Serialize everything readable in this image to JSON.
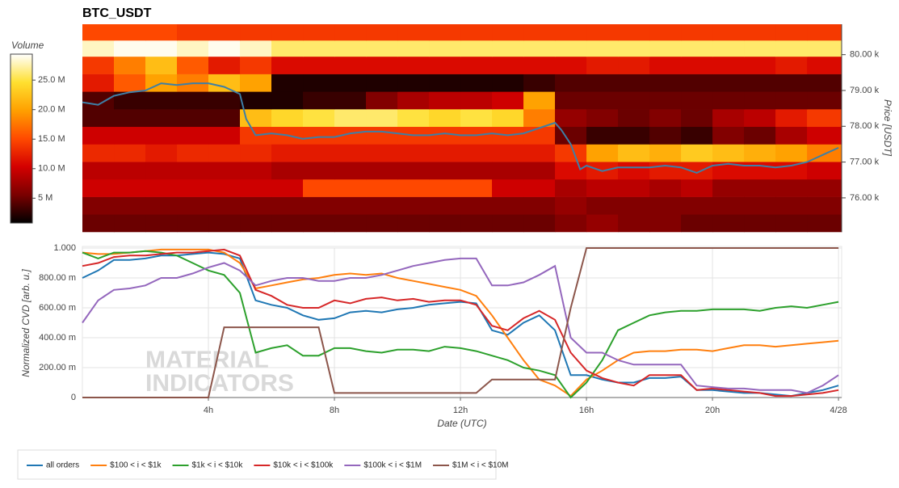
{
  "chart_data": [
    {
      "type": "heatmap",
      "title": "BTC_USDT",
      "colorbar_title": "Volume",
      "y_label": "Price [USDT]",
      "xlim": [
        0,
        24.1
      ],
      "ylim": [
        75050,
        80850
      ],
      "yticks": [
        {
          "value": 76000,
          "label": "76.00 k"
        },
        {
          "value": 77000,
          "label": "77.00 k"
        },
        {
          "value": 78000,
          "label": "78.00 k"
        },
        {
          "value": 79000,
          "label": "79.00 k"
        },
        {
          "value": 80000,
          "label": "80.00 k"
        }
      ],
      "x_bins": [
        0,
        1,
        2,
        3,
        4,
        5,
        6,
        7,
        8,
        9,
        10,
        11,
        12,
        13,
        14,
        15,
        16,
        17,
        18,
        19,
        20,
        21,
        22,
        23,
        24.1
      ],
      "y_bins": [
        75050,
        75540,
        76030,
        76520,
        77010,
        77500,
        77990,
        78480,
        78970,
        79460,
        79950,
        80400,
        80850
      ],
      "z": [
        [
          5,
          5,
          5,
          5,
          5,
          5,
          5,
          5,
          5,
          5,
          5,
          5,
          5,
          5,
          5,
          6,
          7,
          6,
          6,
          5,
          5,
          5,
          5,
          5
        ],
        [
          6,
          6,
          6,
          6,
          6,
          6,
          6,
          6,
          6,
          6,
          6,
          6,
          6,
          6,
          6,
          7,
          6,
          6,
          6,
          6,
          6,
          6,
          6,
          6
        ],
        [
          10,
          10,
          10,
          10,
          10,
          10,
          10,
          15,
          15,
          15,
          15,
          15,
          15,
          10,
          10,
          8,
          9,
          9,
          8,
          9,
          7,
          7,
          7,
          7
        ],
        [
          9,
          9,
          9,
          9,
          9,
          9,
          8,
          8,
          8,
          8,
          8,
          8,
          8,
          8,
          8,
          11,
          12,
          11,
          12,
          12,
          11,
          11,
          11,
          10
        ],
        [
          13,
          13,
          12,
          13,
          13,
          13,
          12,
          12,
          12,
          12,
          12,
          12,
          12,
          12,
          12,
          14,
          20,
          22,
          21,
          23,
          22,
          21,
          20,
          18
        ],
        [
          10,
          10,
          10,
          10,
          10,
          14,
          14,
          14,
          14,
          14,
          14,
          14,
          14,
          14,
          14,
          5,
          3,
          3,
          4,
          3,
          6,
          5,
          8,
          10
        ],
        [
          4,
          4,
          4,
          4,
          4,
          22,
          24,
          25,
          26,
          26,
          25,
          24,
          25,
          24,
          18,
          7,
          6,
          5,
          6,
          5,
          8,
          9,
          12,
          14
        ],
        [
          4,
          3,
          3,
          3,
          3,
          2,
          2,
          3,
          3,
          6,
          8,
          9,
          9,
          10,
          20,
          5,
          5,
          5,
          5,
          5,
          5,
          5,
          5,
          5
        ],
        [
          12,
          16,
          20,
          18,
          22,
          20,
          2,
          2,
          2,
          2,
          2,
          2,
          2,
          2,
          3,
          4,
          4,
          4,
          4,
          4,
          4,
          4,
          4,
          4
        ],
        [
          14,
          18,
          22,
          16,
          12,
          14,
          11,
          11,
          11,
          11,
          11,
          11,
          11,
          11,
          11,
          11,
          12,
          12,
          11,
          11,
          11,
          11,
          12,
          11
        ],
        [
          28,
          29,
          29,
          28,
          29,
          28,
          26,
          26,
          26,
          26,
          26,
          26,
          26,
          26,
          26,
          26,
          26,
          26,
          26,
          26,
          26,
          26,
          26,
          26
        ],
        [
          15,
          15,
          15,
          14,
          14,
          14,
          14,
          14,
          14,
          14,
          14,
          14,
          14,
          14,
          14,
          14,
          14,
          14,
          14,
          14,
          14,
          14,
          14,
          14
        ]
      ],
      "zlim": [
        0.8,
        29.4
      ],
      "zticks": [
        {
          "value": 5,
          "label": "5 M"
        },
        {
          "value": 10,
          "label": "10.0 M"
        },
        {
          "value": 15,
          "label": "15.0 M"
        },
        {
          "value": 20,
          "label": "20.0 M"
        },
        {
          "value": 25,
          "label": "25.0 M"
        }
      ],
      "colorscale": [
        "#000000",
        "#7a0000",
        "#d40000",
        "#ff4a00",
        "#ffa000",
        "#ffe030",
        "#ffffff"
      ],
      "price": {
        "color": "#3d7fa6",
        "x": [
          0,
          0.5,
          1,
          1.5,
          2,
          2.5,
          3,
          3.5,
          4,
          4.5,
          5,
          5.2,
          5.5,
          6,
          6.5,
          7,
          7.5,
          8,
          8.5,
          9,
          9.5,
          10,
          10.5,
          11,
          11.5,
          12,
          12.5,
          13,
          13.5,
          14,
          14.5,
          15,
          15.2,
          15.5,
          15.8,
          16,
          16.5,
          17,
          17.5,
          18,
          18.5,
          19,
          19.5,
          20,
          20.5,
          21,
          21.5,
          22,
          22.5,
          23,
          23.5,
          24
        ],
        "values": [
          78670,
          78600,
          78850,
          78950,
          79000,
          79200,
          79150,
          79200,
          79200,
          79100,
          78900,
          78200,
          77750,
          77800,
          77750,
          77650,
          77700,
          77700,
          77800,
          77850,
          77850,
          77800,
          77750,
          77750,
          77800,
          77750,
          77750,
          77800,
          77750,
          77800,
          77950,
          78100,
          77900,
          77500,
          76800,
          76900,
          76750,
          76850,
          76850,
          76850,
          76900,
          76850,
          76700,
          76900,
          76950,
          76900,
          76900,
          76850,
          76900,
          77000,
          77200,
          77400
        ]
      }
    },
    {
      "type": "line",
      "x_label": "Date (UTC)",
      "y_label": "Normalized CVD [arb. u.]",
      "watermark": [
        "MATERIAL",
        "INDICATORS"
      ],
      "xlim": [
        0,
        24.1
      ],
      "ylim": [
        0,
        1
      ],
      "xticks": [
        {
          "value": 4,
          "label": "4h"
        },
        {
          "value": 8,
          "label": "8h"
        },
        {
          "value": 12,
          "label": "12h"
        },
        {
          "value": 16,
          "label": "16h"
        },
        {
          "value": 20,
          "label": "20h"
        },
        {
          "value": 24,
          "label": "4/28"
        }
      ],
      "yticks": [
        0,
        {
          "value": 0.2,
          "label": "200.00 m"
        },
        {
          "value": 0.4,
          "label": "400.00 m"
        },
        {
          "value": 0.6,
          "label": "600.00 m"
        },
        {
          "value": 0.8,
          "label": "800.00 m"
        },
        {
          "value": 1,
          "label": "1.000"
        }
      ],
      "grid": true,
      "x": [
        0,
        0.5,
        1,
        1.5,
        2,
        2.5,
        3,
        3.5,
        4,
        4.5,
        5,
        5.5,
        6,
        6.5,
        7,
        7.5,
        8,
        8.5,
        9,
        9.5,
        10,
        10.5,
        11,
        11.5,
        12,
        12.5,
        13,
        13.5,
        14,
        14.5,
        15,
        15.5,
        16,
        16.5,
        17,
        17.5,
        18,
        18.5,
        19,
        19.5,
        20,
        20.5,
        21,
        21.5,
        22,
        22.5,
        23,
        23.5,
        24
      ],
      "series": [
        {
          "name": "all orders",
          "color": "#1f77b4",
          "values": [
            0.8,
            0.85,
            0.92,
            0.92,
            0.93,
            0.95,
            0.95,
            0.96,
            0.97,
            0.96,
            0.93,
            0.65,
            0.62,
            0.6,
            0.55,
            0.52,
            0.53,
            0.57,
            0.58,
            0.57,
            0.59,
            0.6,
            0.62,
            0.63,
            0.64,
            0.63,
            0.45,
            0.42,
            0.5,
            0.55,
            0.45,
            0.15,
            0.15,
            0.12,
            0.1,
            0.1,
            0.13,
            0.13,
            0.14,
            0.05,
            0.05,
            0.04,
            0.03,
            0.03,
            0.02,
            0.01,
            0.03,
            0.05,
            0.08
          ]
        },
        {
          "name": "$100 < i < $1k",
          "color": "#ff7f0e",
          "values": [
            0.97,
            0.96,
            0.96,
            0.97,
            0.98,
            0.99,
            0.99,
            0.99,
            0.99,
            0.97,
            0.9,
            0.73,
            0.75,
            0.77,
            0.79,
            0.8,
            0.82,
            0.83,
            0.82,
            0.83,
            0.8,
            0.78,
            0.76,
            0.74,
            0.72,
            0.68,
            0.55,
            0.4,
            0.25,
            0.12,
            0.08,
            0.01,
            0.12,
            0.18,
            0.25,
            0.3,
            0.31,
            0.31,
            0.32,
            0.32,
            0.31,
            0.33,
            0.35,
            0.35,
            0.34,
            0.35,
            0.36,
            0.37,
            0.38
          ]
        },
        {
          "name": "$1k < i < $10k",
          "color": "#2ca02c",
          "values": [
            0.97,
            0.93,
            0.97,
            0.97,
            0.98,
            0.97,
            0.95,
            0.9,
            0.85,
            0.82,
            0.7,
            0.3,
            0.33,
            0.35,
            0.28,
            0.28,
            0.33,
            0.33,
            0.31,
            0.3,
            0.32,
            0.32,
            0.31,
            0.34,
            0.33,
            0.31,
            0.28,
            0.25,
            0.2,
            0.18,
            0.15,
            0.0,
            0.1,
            0.25,
            0.45,
            0.5,
            0.55,
            0.57,
            0.58,
            0.58,
            0.59,
            0.59,
            0.59,
            0.58,
            0.6,
            0.61,
            0.6,
            0.62,
            0.64
          ]
        },
        {
          "name": "$10k < i < $100k",
          "color": "#d62728",
          "values": [
            0.88,
            0.9,
            0.94,
            0.95,
            0.95,
            0.96,
            0.97,
            0.97,
            0.98,
            0.99,
            0.95,
            0.72,
            0.68,
            0.62,
            0.6,
            0.6,
            0.65,
            0.63,
            0.66,
            0.67,
            0.65,
            0.66,
            0.64,
            0.65,
            0.65,
            0.62,
            0.48,
            0.45,
            0.53,
            0.58,
            0.52,
            0.3,
            0.18,
            0.13,
            0.1,
            0.08,
            0.15,
            0.15,
            0.15,
            0.05,
            0.06,
            0.05,
            0.04,
            0.03,
            0.01,
            0.01,
            0.02,
            0.03,
            0.05
          ]
        },
        {
          "name": "$100k < i < $1M",
          "color": "#9467bd",
          "values": [
            0.5,
            0.65,
            0.72,
            0.73,
            0.75,
            0.8,
            0.8,
            0.83,
            0.87,
            0.9,
            0.85,
            0.75,
            0.78,
            0.8,
            0.8,
            0.78,
            0.78,
            0.8,
            0.8,
            0.82,
            0.85,
            0.88,
            0.9,
            0.92,
            0.93,
            0.93,
            0.75,
            0.75,
            0.77,
            0.82,
            0.88,
            0.4,
            0.3,
            0.3,
            0.25,
            0.22,
            0.22,
            0.22,
            0.22,
            0.08,
            0.07,
            0.06,
            0.06,
            0.05,
            0.05,
            0.05,
            0.03,
            0.08,
            0.15
          ]
        },
        {
          "name": "$1M < i < $10M",
          "color": "#8c564b",
          "values": [
            0,
            0,
            0,
            0,
            0,
            0,
            0,
            0,
            0,
            0.47,
            0.47,
            0.47,
            0.47,
            0.47,
            0.47,
            0.47,
            0.03,
            0.03,
            0.03,
            0.03,
            0.03,
            0.03,
            0.03,
            0.03,
            0.03,
            0.03,
            0.12,
            0.12,
            0.12,
            0.12,
            0.12,
            0.6,
            1,
            1,
            1,
            1,
            1,
            1,
            1,
            1,
            1,
            1,
            1,
            1,
            1,
            1,
            1,
            1,
            1
          ]
        }
      ]
    }
  ]
}
